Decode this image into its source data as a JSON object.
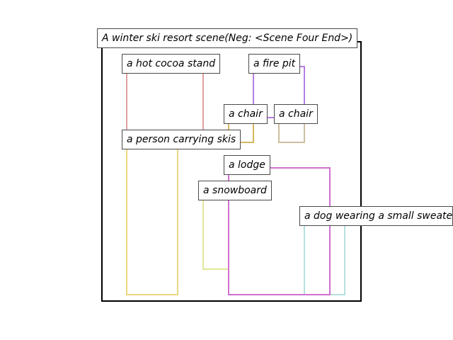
{
  "title": "A winter ski resort scene(Neg: <Scene Four End>)",
  "layout_boxes": [
    {
      "id": "hot-cocoa-stand",
      "label": "a hot cocoa stand",
      "color": "#e0a0a0"
    },
    {
      "id": "fire-pit",
      "label": "a fire pit",
      "color": "#b57ee0"
    },
    {
      "id": "chair-1",
      "label": "a chair",
      "color": "#d4b860"
    },
    {
      "id": "chair-2",
      "label": "a chair",
      "color": "#cdbfa0"
    },
    {
      "id": "person-carrying-skis",
      "label": "a person carrying skis",
      "color": "#ecd67e"
    },
    {
      "id": "lodge",
      "label": "a lodge",
      "color": "#d070d0"
    },
    {
      "id": "snowboard",
      "label": "a snowboard",
      "color": "#e2e69a"
    },
    {
      "id": "dog-small-sweater",
      "label": "a dog wearing a small sweater",
      "color": "#b7e0e0"
    }
  ]
}
